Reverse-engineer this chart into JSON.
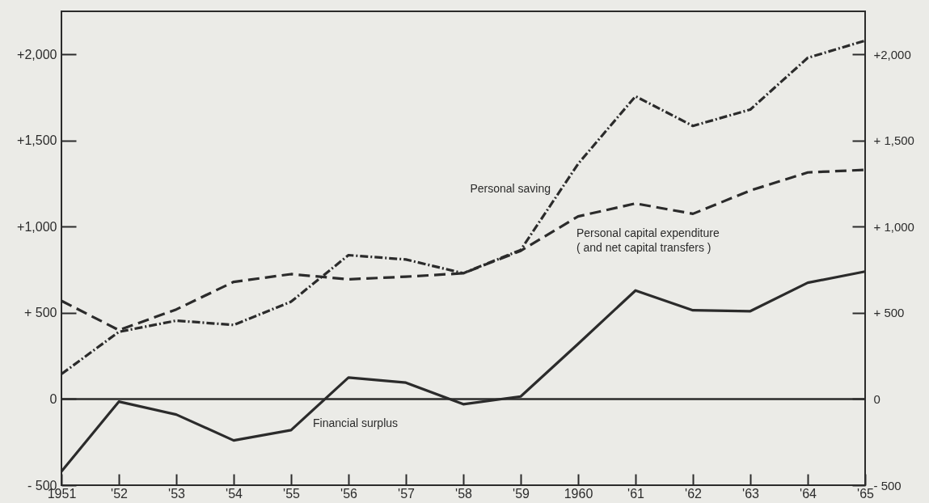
{
  "chart_data": {
    "type": "line",
    "categories": [
      "1951",
      "'52",
      "'53",
      "'54",
      "'55",
      "'56",
      "'57",
      "'58",
      "'59",
      "1960",
      "'61",
      "'62",
      "'63",
      "'64",
      "'65"
    ],
    "series": [
      {
        "name": "Personal saving",
        "color": "#2b2b2b",
        "line_style": "dotted",
        "values": [
          145,
          390,
          455,
          430,
          565,
          835,
          810,
          730,
          865,
          1365,
          1757,
          1585,
          1680,
          1980,
          2080
        ]
      },
      {
        "name": "Personal capital expenditure\n( and net capital transfers )",
        "color": "#2b2b2b",
        "line_style": "dashed",
        "values": [
          570,
          400,
          520,
          680,
          725,
          695,
          710,
          730,
          860,
          1060,
          1135,
          1075,
          1210,
          1315,
          1330
        ]
      },
      {
        "name": "Financial surplus",
        "color": "#2b2b2b",
        "line_style": "solid",
        "values": [
          -420,
          -15,
          -90,
          -240,
          -180,
          125,
          95,
          -30,
          15,
          320,
          630,
          515,
          510,
          675,
          740
        ]
      }
    ],
    "ylim": [
      -500,
      2250
    ],
    "yticks": [
      {
        "value": -500,
        "label": "- 500"
      },
      0,
      {
        "value": 500,
        "label": "+ 500"
      },
      {
        "value": 1000,
        "label": "+1,000"
      },
      {
        "value": 1500,
        "label": "+1,500"
      },
      {
        "value": 2000,
        "label": "+2,000"
      }
    ],
    "y2lim": [
      -500,
      2250
    ],
    "y2ticks": [
      {
        "value": -500,
        "label": "- 500"
      },
      0,
      {
        "value": 500,
        "label": "+ 500"
      },
      {
        "value": 1000,
        "label": "+ 1,000"
      },
      {
        "value": 1500,
        "label": "+ 1,500"
      },
      {
        "value": 2000,
        "label": "+2,000"
      }
    ],
    "ref_lines": [
      {
        "axis": "y",
        "value": 0
      }
    ],
    "grid": false,
    "marker": "none"
  }
}
